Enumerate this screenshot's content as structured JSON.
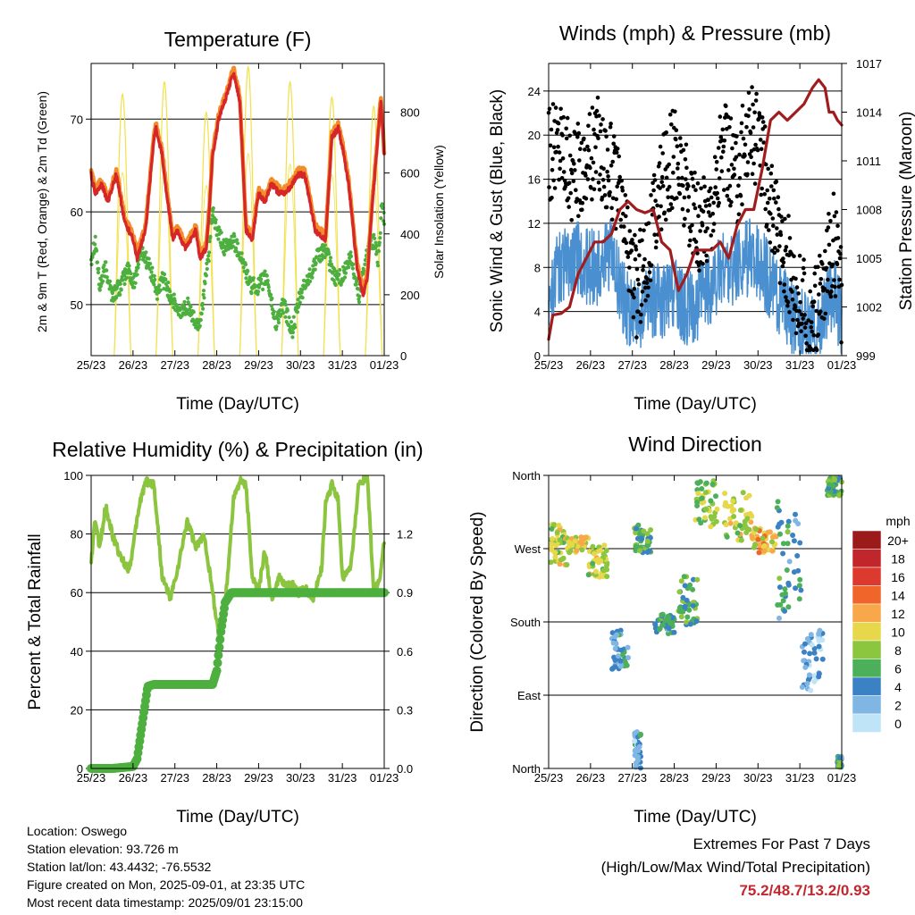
{
  "xlabel": "Time (Day/UTC)",
  "xticks": [
    "25/23",
    "26/23",
    "27/23",
    "28/23",
    "29/23",
    "30/23",
    "31/23",
    "01/23"
  ],
  "panels": {
    "temperature": {
      "title": "Temperature (F)",
      "ylabel_left": "2m & 9m T (Red, Orange) & 2m Td (Green)",
      "ylabel_right": "Solar Insolation (Yellow)",
      "yticks_left": [
        "50",
        "60",
        "70"
      ],
      "yticks_right": [
        "0",
        "200",
        "400",
        "600",
        "800"
      ]
    },
    "winds": {
      "title": "Winds (mph) & Pressure (mb)",
      "ylabel_left": "Sonic Wind & Gust (Blue, Black)",
      "ylabel_right": "Station Pressure (Maroon)",
      "yticks_left": [
        "0",
        "4",
        "8",
        "12",
        "16",
        "20",
        "24"
      ],
      "yticks_right": [
        "999",
        "1002",
        "1005",
        "1008",
        "1011",
        "1014",
        "1017"
      ]
    },
    "humidity": {
      "title": "Relative Humidity (%) & Precipitation (in)",
      "ylabel_left": "Percent & Total Rainfall",
      "yticks_left": [
        "0",
        "20",
        "40",
        "60",
        "80",
        "100"
      ],
      "yticks_right": [
        "0.0",
        "0.3",
        "0.6",
        "0.9",
        "1.2"
      ]
    },
    "direction": {
      "title": "Wind Direction",
      "ylabel_left": "Direction (Colored By Speed)",
      "yticks_left": [
        "North",
        "East",
        "South",
        "West",
        "North"
      ],
      "legend_title": "mph",
      "legend_labels": [
        "20+",
        "18",
        "16",
        "14",
        "12",
        "10",
        "8",
        "6",
        "4",
        "2",
        "0"
      ],
      "legend_colors": [
        "#9b1b1b",
        "#c0262b",
        "#dc3a2e",
        "#f0662a",
        "#f8a84a",
        "#e6d84a",
        "#8cc63f",
        "#4caf5a",
        "#3b82c4",
        "#7fb6e4",
        "#bfe3f7"
      ]
    }
  },
  "chart_data": [
    {
      "type": "line",
      "title": "Temperature (F)",
      "xlabel": "Time (Day/UTC)",
      "ylabel": "2m & 9m T (Red, Orange) & 2m Td (Green)",
      "y2label": "Solar Insolation (Yellow)",
      "x_range_days": [
        0,
        7
      ],
      "ylim": [
        44.5,
        76
      ],
      "y2lim": [
        0,
        960
      ],
      "colors": {
        "t2m": "#d62728",
        "t9m": "#f58c2a",
        "td2m": "#4caf3e",
        "solar": "#f2e04a"
      },
      "series": [
        {
          "name": "2m T",
          "x": [
            0,
            0.1,
            0.25,
            0.4,
            0.6,
            0.8,
            1.0,
            1.1,
            1.3,
            1.5,
            1.55,
            1.7,
            1.8,
            1.95,
            2.05,
            2.25,
            2.5,
            2.6,
            2.75,
            2.82,
            2.9,
            3.05,
            3.2,
            3.4,
            3.55,
            3.7,
            3.85,
            4.0,
            4.15,
            4.3,
            4.5,
            4.65,
            4.8,
            4.95,
            5.1,
            5.35,
            5.6,
            5.75,
            5.9,
            6.0,
            6.15,
            6.35,
            6.5,
            6.6,
            6.7,
            6.85,
            6.92,
            7.0
          ],
          "values": [
            64,
            62,
            63,
            61,
            64,
            59,
            57,
            55,
            58,
            68,
            69,
            66,
            62,
            57,
            58,
            56,
            58,
            55,
            56,
            60,
            66,
            70,
            72,
            75,
            72,
            58,
            57,
            62,
            61,
            63,
            62,
            62,
            63,
            64,
            64,
            58,
            57,
            68,
            69,
            67,
            63,
            54,
            51,
            53,
            60,
            68,
            72,
            66
          ]
        },
        {
          "name": "Td",
          "x": [
            0,
            0.1,
            0.2,
            0.35,
            0.5,
            0.7,
            0.9,
            1.0,
            1.2,
            1.4,
            1.6,
            1.7,
            1.9,
            2.1,
            2.3,
            2.5,
            2.6,
            2.8,
            2.9,
            3.0,
            3.2,
            3.4,
            3.6,
            3.8,
            4.0,
            4.2,
            4.4,
            4.6,
            4.8,
            5.0,
            5.2,
            5.4,
            5.6,
            5.8,
            6.0,
            6.2,
            6.4,
            6.6,
            6.75,
            6.85,
            6.95,
            7.0
          ],
          "values": [
            55,
            57,
            52,
            54,
            51,
            52,
            54,
            52,
            56,
            54,
            51,
            53,
            51,
            49,
            50,
            48,
            48,
            55,
            60,
            58,
            56,
            57,
            55,
            52,
            52,
            53,
            48,
            50,
            47,
            51,
            53,
            55,
            56,
            53,
            53,
            55,
            51,
            56,
            57,
            55,
            61,
            59
          ]
        },
        {
          "name": "Solar",
          "x": [
            0.55,
            0.75,
            0.95,
            1.55,
            1.75,
            1.95,
            2.55,
            2.75,
            2.95,
            3.55,
            3.75,
            3.95,
            4.55,
            4.75,
            4.95,
            5.55,
            5.75,
            5.95,
            6.55,
            6.75,
            6.95
          ],
          "values": [
            0,
            860,
            0,
            0,
            900,
            0,
            0,
            800,
            0,
            0,
            950,
            0,
            0,
            900,
            0,
            0,
            850,
            0,
            0,
            820,
            0
          ]
        }
      ]
    },
    {
      "type": "line",
      "title": "Winds (mph) & Pressure (mb)",
      "ylabel": "Sonic Wind & Gust (Blue, Black)",
      "y2label": "Station Pressure (Maroon)",
      "ylim": [
        0,
        26.5
      ],
      "y2lim": [
        999,
        1017
      ],
      "colors": {
        "wind": "#4a90d0",
        "gust": "#000000",
        "pressure": "#a11d1d"
      },
      "series": [
        {
          "name": "Pressure",
          "x": [
            0,
            0.1,
            0.3,
            0.5,
            0.7,
            0.9,
            1.1,
            1.3,
            1.5,
            1.7,
            1.9,
            2.1,
            2.3,
            2.5,
            2.7,
            2.9,
            3.1,
            3.3,
            3.5,
            3.7,
            3.9,
            4.1,
            4.3,
            4.5,
            4.7,
            4.9,
            5.1,
            5.3,
            5.5,
            5.7,
            5.9,
            6.1,
            6.3,
            6.45,
            6.6,
            6.7,
            6.8,
            6.9,
            7.0
          ],
          "values": [
            1000,
            1001.5,
            1001.6,
            1002,
            1004,
            1005,
            1006,
            1006,
            1006.5,
            1008,
            1008.5,
            1008,
            1007.8,
            1008,
            1006,
            1005.5,
            1003,
            1004,
            1005.5,
            1005.5,
            1005.5,
            1006,
            1005,
            1007,
            1008,
            1008,
            1010.5,
            1013.5,
            1014,
            1013.5,
            1014,
            1014.5,
            1015.5,
            1016,
            1015.5,
            1014,
            1014,
            1013.5,
            1013.2
          ]
        },
        {
          "name": "Wind",
          "x": [
            0,
            0.3,
            0.6,
            0.9,
            1.2,
            1.5,
            1.8,
            2.1,
            2.4,
            2.7,
            3.0,
            3.3,
            3.6,
            3.9,
            4.2,
            4.5,
            4.8,
            5.1,
            5.4,
            5.7,
            5.95,
            6.2,
            6.4,
            6.6,
            6.8,
            7.0
          ],
          "values": [
            6,
            8,
            9,
            8,
            8,
            9,
            5,
            3,
            5,
            5,
            6,
            4,
            5,
            6,
            8,
            8,
            9,
            8,
            6,
            4,
            3,
            2,
            2,
            4,
            6,
            3
          ]
        },
        {
          "name": "Gust",
          "x": [
            0,
            0.3,
            0.6,
            0.9,
            1.2,
            1.5,
            1.8,
            2.1,
            2.4,
            2.7,
            3.0,
            3.3,
            3.6,
            3.9,
            4.2,
            4.5,
            4.8,
            5.1,
            5.4,
            5.7,
            5.95,
            6.2,
            6.4,
            6.6,
            6.8,
            7.0
          ],
          "values": [
            18,
            20,
            16,
            18,
            19,
            17,
            12,
            6,
            10,
            16,
            18,
            15,
            11,
            14,
            19,
            16,
            21,
            18,
            12,
            9,
            6,
            3,
            4,
            7,
            11,
            5
          ]
        }
      ]
    },
    {
      "type": "line",
      "title": "Relative Humidity (%) & Precipitation (in)",
      "ylabel": "Percent & Total Rainfall",
      "ylim": [
        0,
        100
      ],
      "y2lim": [
        0,
        1.5
      ],
      "colors": {
        "rh": "#8bc53f",
        "precip": "#4caf3e"
      },
      "series": [
        {
          "name": "RH",
          "x": [
            0,
            0.1,
            0.2,
            0.35,
            0.5,
            0.7,
            0.9,
            1.0,
            1.15,
            1.3,
            1.5,
            1.7,
            1.9,
            2.1,
            2.3,
            2.5,
            2.7,
            2.9,
            3.05,
            3.2,
            3.4,
            3.55,
            3.7,
            3.85,
            4.0,
            4.15,
            4.3,
            4.5,
            4.65,
            4.8,
            4.95,
            5.1,
            5.3,
            5.5,
            5.6,
            5.75,
            5.9,
            6.0,
            6.2,
            6.4,
            6.6,
            6.75,
            6.9,
            7.0
          ],
          "values": [
            70,
            85,
            75,
            90,
            80,
            72,
            68,
            75,
            90,
            98,
            97,
            65,
            58,
            70,
            85,
            75,
            80,
            60,
            45,
            55,
            92,
            98,
            97,
            65,
            60,
            75,
            58,
            65,
            62,
            63,
            60,
            62,
            58,
            68,
            90,
            97,
            92,
            65,
            68,
            98,
            99,
            60,
            65,
            78
          ]
        },
        {
          "name": "Total Precipitation",
          "x": [
            0,
            0.5,
            1.0,
            1.1,
            1.2,
            1.35,
            1.5,
            2.0,
            2.5,
            2.9,
            3.0,
            3.1,
            3.2,
            3.35,
            3.5,
            4.0,
            5.0,
            6.0,
            7.0
          ],
          "values": [
            0,
            0,
            0.01,
            0.05,
            0.2,
            0.42,
            0.43,
            0.43,
            0.43,
            0.43,
            0.5,
            0.7,
            0.85,
            0.9,
            0.9,
            0.9,
            0.9,
            0.9,
            0.9
          ]
        }
      ]
    },
    {
      "type": "scatter",
      "title": "Wind Direction",
      "ylabel": "Direction (Colored By Speed)",
      "ylim_degrees": [
        0,
        360
      ],
      "color_scale_mph": [
        0,
        2,
        4,
        6,
        8,
        10,
        12,
        14,
        16,
        18,
        20
      ],
      "clusters": [
        {
          "x": [
            0.05,
            0.45
          ],
          "dir": [
            250,
            300
          ],
          "speed": 9
        },
        {
          "x": [
            0.45,
            0.95
          ],
          "dir": [
            265,
            285
          ],
          "speed": 10
        },
        {
          "x": [
            0.95,
            1.4
          ],
          "dir": [
            235,
            275
          ],
          "speed": 9
        },
        {
          "x": [
            1.5,
            1.9
          ],
          "dir": [
            120,
            170
          ],
          "speed": 4
        },
        {
          "x": [
            2.05,
            2.45
          ],
          "dir": [
            265,
            300
          ],
          "speed": 6
        },
        {
          "x": [
            2.05,
            2.2
          ],
          "dir": [
            0,
            45
          ],
          "speed": 3
        },
        {
          "x": [
            2.5,
            3.0
          ],
          "dir": [
            165,
            190
          ],
          "speed": 5
        },
        {
          "x": [
            3.1,
            3.55
          ],
          "dir": [
            175,
            240
          ],
          "speed": 6
        },
        {
          "x": [
            3.5,
            4.05
          ],
          "dir": [
            295,
            355
          ],
          "speed": 8
        },
        {
          "x": [
            4.2,
            4.85
          ],
          "dir": [
            280,
            340
          ],
          "speed": 9
        },
        {
          "x": [
            4.85,
            5.45
          ],
          "dir": [
            265,
            295
          ],
          "speed": 11
        },
        {
          "x": [
            5.45,
            6.05
          ],
          "dir": [
            180,
            330
          ],
          "speed": 5
        },
        {
          "x": [
            6.05,
            6.55
          ],
          "dir": [
            95,
            170
          ],
          "speed": 2
        },
        {
          "x": [
            6.65,
            7.0
          ],
          "dir": [
            335,
            358
          ],
          "speed": 6
        },
        {
          "x": [
            6.9,
            7.0
          ],
          "dir": [
            0,
            15
          ],
          "speed": 5
        }
      ]
    }
  ],
  "info": {
    "location": "Location: Oswego",
    "elevation": "Station elevation: 93.726 m",
    "latlon": "Station lat/lon: 43.4432; -76.5532",
    "created": "Figure created on Mon, 2025-09-01, at 23:35 UTC",
    "recent": "Most recent data timestamp: 2025/09/01 23:15:00"
  },
  "extremes": {
    "title": "Extremes For Past 7 Days",
    "subtitle": "(High/Low/Max Wind/Total Precipitation)",
    "values": "75.2/48.7/13.2/0.93"
  }
}
